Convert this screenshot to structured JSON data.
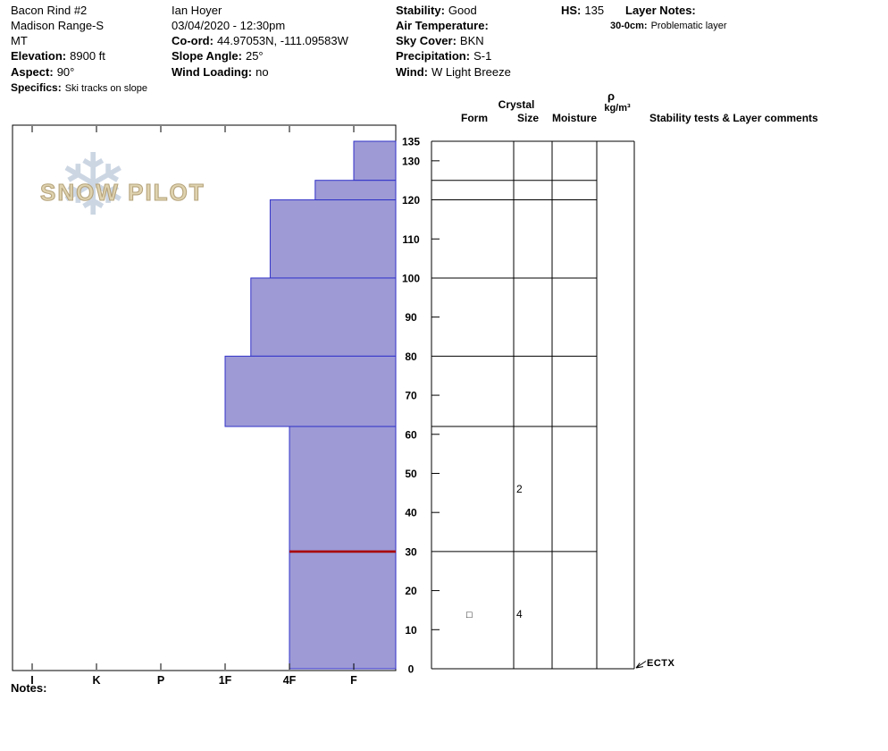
{
  "header": {
    "site": {
      "name": "Bacon Rind #2",
      "range": "Madison Range-S",
      "state": "MT",
      "elevation_label": "Elevation:",
      "elevation_value": "8900 ft",
      "aspect_label": "Aspect:",
      "aspect_value": "90°",
      "specifics_label": "Specifics:",
      "specifics_value": "Ski tracks on slope"
    },
    "observer": {
      "name": "Ian Hoyer",
      "datetime": "03/04/2020 - 12:30pm",
      "coord_label": "Co-ord:",
      "coord_value": "44.97053N, -111.09583W",
      "slope_angle_label": "Slope Angle:",
      "slope_angle_value": "25°",
      "wind_loading_label": "Wind Loading:",
      "wind_loading_value": "no"
    },
    "conditions": {
      "stability_label": "Stability:",
      "stability_value": "Good",
      "air_temp_label": "Air Temperature:",
      "air_temp_value": "",
      "sky_cover_label": "Sky Cover:",
      "sky_cover_value": "BKN",
      "precipitation_label": "Precipitation:",
      "precipitation_value": "S-1",
      "wind_label": "Wind:",
      "wind_value": "W Light Breeze"
    },
    "hs_label": "HS:",
    "hs_value": "135",
    "layer_notes": {
      "title": "Layer Notes:",
      "items": [
        {
          "range": "30-0cm:",
          "text": "Problematic layer"
        }
      ]
    }
  },
  "watermark": {
    "snowflake_glyph": "❄",
    "text": "SNOW PILOT"
  },
  "grid": {
    "crystal_header": "Crystal",
    "form_header": "Form",
    "size_header": "Size",
    "moisture_header": "Moisture",
    "density_rho": "ρ",
    "density_unit": "kg/m³",
    "stability_header": "Stability tests & Layer comments",
    "ect_result": "ECTX"
  },
  "notes_label": "Notes:",
  "chart_data": {
    "type": "bar",
    "subtype": "snow-hardness-profile",
    "orientation": "horizontal bars, depth axis vertical (0 cm at bottom, snow surface 135 cm at top)",
    "hs_cm": 135,
    "depth_ticks": [
      0,
      10,
      20,
      30,
      40,
      50,
      60,
      70,
      80,
      90,
      100,
      110,
      120,
      130,
      135
    ],
    "hardness_ticks": [
      "I",
      "K",
      "P",
      "1F",
      "4F",
      "F"
    ],
    "layers": [
      {
        "top_cm": 135,
        "bottom_cm": 125,
        "hardness": "F",
        "hardness_index": 5.0
      },
      {
        "top_cm": 125,
        "bottom_cm": 120,
        "hardness": "4F-F",
        "hardness_index": 4.4
      },
      {
        "top_cm": 120,
        "bottom_cm": 100,
        "hardness": "4F+",
        "hardness_index": 3.7
      },
      {
        "top_cm": 100,
        "bottom_cm": 80,
        "hardness": "1F-4F",
        "hardness_index": 3.4
      },
      {
        "top_cm": 80,
        "bottom_cm": 62,
        "hardness": "1F",
        "hardness_index": 3.0
      },
      {
        "top_cm": 62,
        "bottom_cm": 30,
        "hardness": "4F",
        "hardness_index": 4.0
      },
      {
        "top_cm": 30,
        "bottom_cm": 0,
        "hardness": "4F",
        "hardness_index": 4.0
      }
    ],
    "flagged_layer_depth_cm": 30,
    "grid_row_boundaries_cm": [
      135,
      125,
      120,
      100,
      80,
      62,
      30,
      0
    ],
    "crystal_annotations": [
      {
        "depth_cm": 46,
        "column": "size",
        "text": "2"
      },
      {
        "depth_cm": 14,
        "column": "form",
        "text": "□",
        "symbol": "facets"
      },
      {
        "depth_cm": 14,
        "column": "size",
        "text": "4"
      }
    ],
    "colors": {
      "bar_fill": "#9d9ad6",
      "bar_stroke": "#3232c8",
      "flag_line": "#aa0000",
      "grid_line": "#000000"
    }
  }
}
